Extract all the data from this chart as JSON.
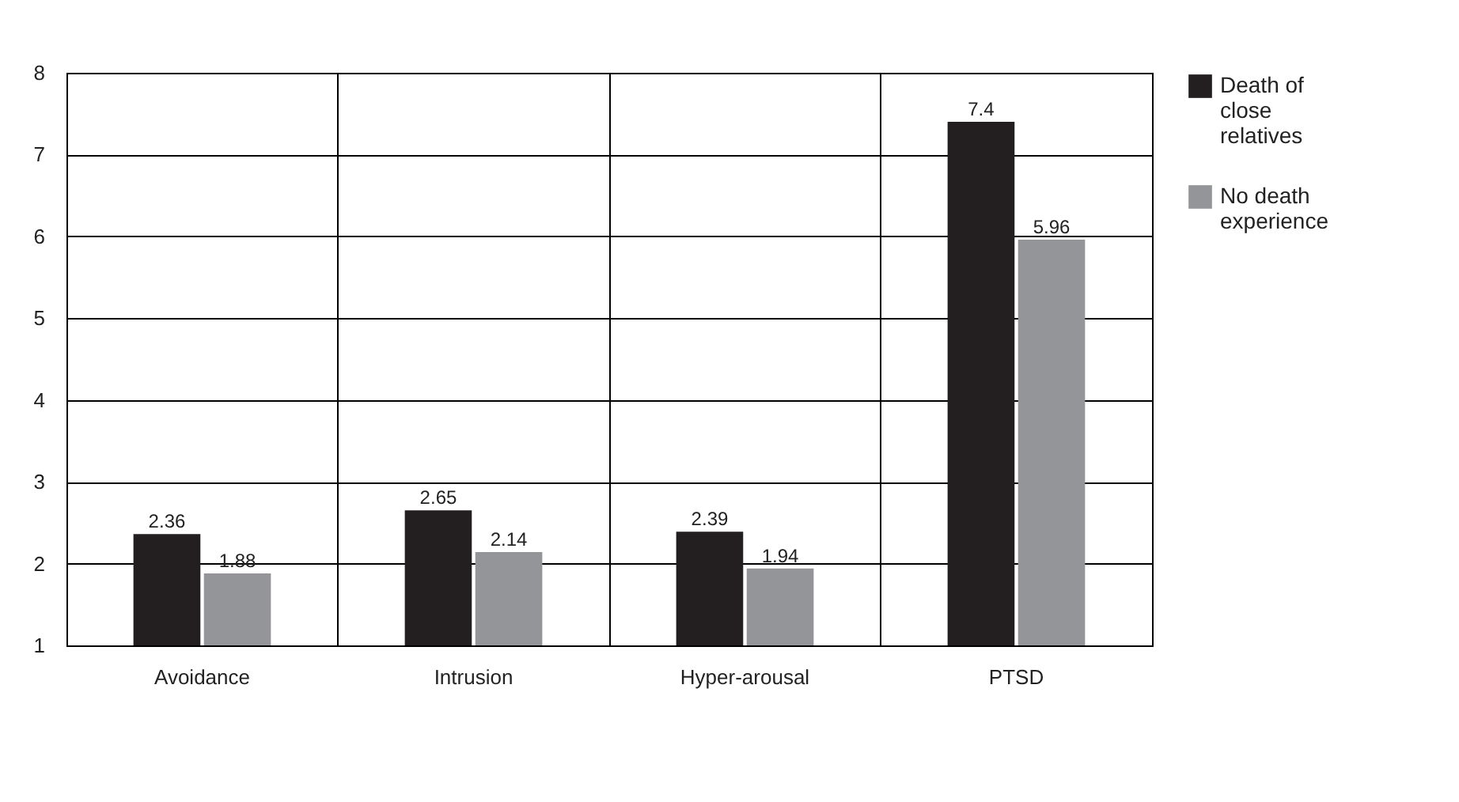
{
  "chart_data": {
    "type": "bar",
    "categories": [
      "Avoidance",
      "Intrusion",
      "Hyper-arousal",
      "PTSD"
    ],
    "series": [
      {
        "name": "Death of close relatives",
        "color": "#231f20",
        "values": [
          2.36,
          2.65,
          2.39,
          7.4
        ]
      },
      {
        "name": "No death experience",
        "color": "#939598",
        "values": [
          1.88,
          2.14,
          1.94,
          5.96
        ]
      }
    ],
    "ylim": [
      1,
      8
    ],
    "yticks": [
      1,
      2,
      3,
      4,
      5,
      6,
      7,
      8
    ],
    "grid": true,
    "legend": "right",
    "data_labels": true
  }
}
